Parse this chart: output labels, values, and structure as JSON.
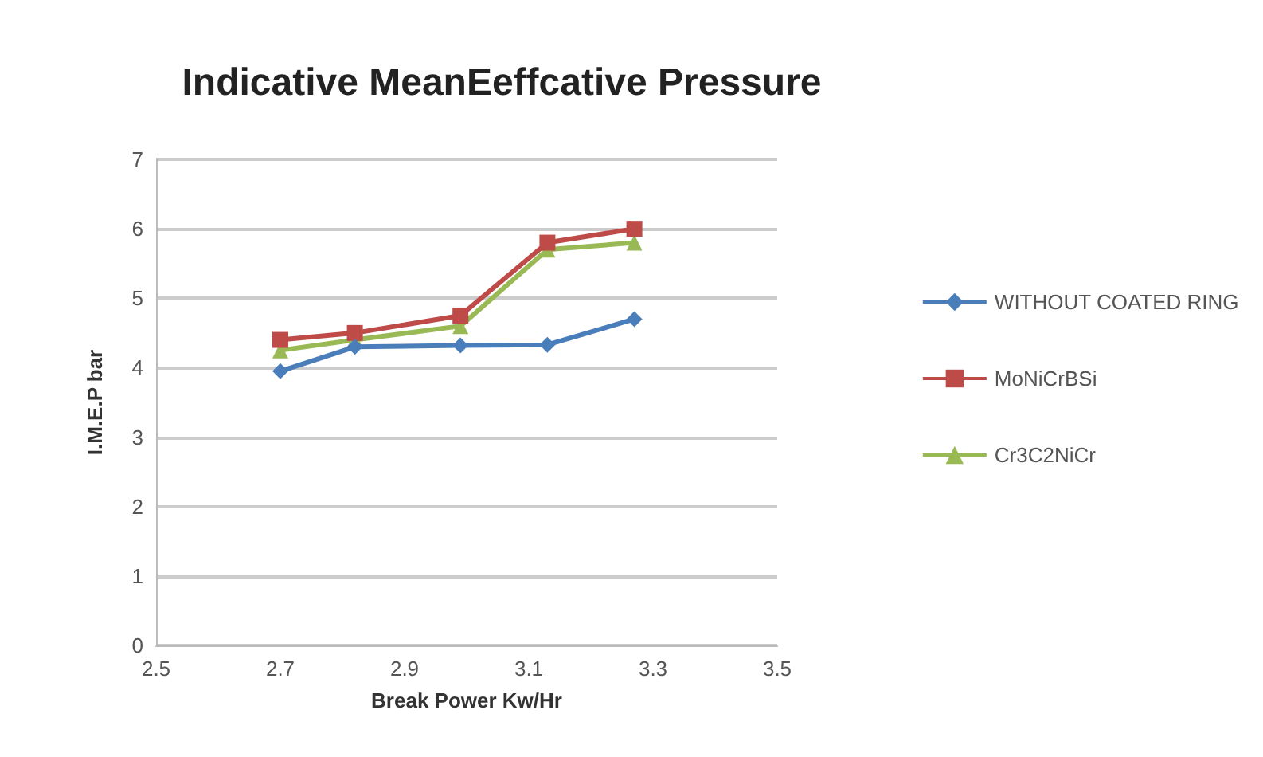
{
  "chart_data": {
    "type": "line",
    "title": "Indicative MeanEeffcative Pressure",
    "xlabel": "Break Power Kw/Hr",
    "ylabel": "I.M.E.P bar",
    "x": [
      2.7,
      2.82,
      2.99,
      3.13,
      3.27
    ],
    "series": [
      {
        "name": "WITHOUT COATED RING",
        "color": "#4a7ebb",
        "marker": "diamond",
        "values": [
          3.95,
          4.3,
          4.32,
          4.33,
          4.7
        ]
      },
      {
        "name": "MoNiCrBSi",
        "color": "#be4b48",
        "marker": "square",
        "values": [
          4.4,
          4.5,
          4.75,
          5.8,
          6.0
        ]
      },
      {
        "name": "Cr3C2NiCr",
        "color": "#98b954",
        "marker": "triangle",
        "values": [
          4.25,
          4.4,
          4.6,
          5.7,
          5.8
        ]
      }
    ],
    "xlim": [
      2.5,
      3.5
    ],
    "xticks": [
      2.5,
      2.7,
      2.9,
      3.1,
      3.3,
      3.5
    ],
    "ylim": [
      0,
      7
    ],
    "yticks": [
      0,
      1,
      2,
      3,
      4,
      5,
      6,
      7
    ],
    "grid": "y",
    "legend": "right"
  }
}
